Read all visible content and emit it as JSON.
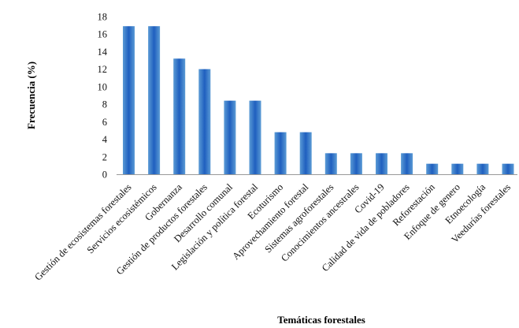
{
  "chart_data": {
    "type": "bar",
    "categories": [
      "Gestión de ecosistemas forestales",
      "Servicios ecosistémicos",
      "Gobernanza",
      "Gestión de productos forestales",
      "Desarrollo comunal",
      "Legislación y política forestal",
      "Ecoturismo",
      "Aprovechamiento forestal",
      "Sistemas agroforestales",
      "Conocimientos ancestrales",
      "Covid-19",
      "Calidad de vida de pobladores",
      "Reforestación",
      "Enfoque de genero",
      "Etnoecología",
      "Veedurías forestales"
    ],
    "values": [
      16.9,
      16.9,
      13.2,
      12.0,
      8.4,
      8.4,
      4.8,
      4.8,
      2.4,
      2.4,
      2.4,
      2.4,
      1.2,
      1.2,
      1.2,
      1.2
    ],
    "xlabel": "Temáticas forestales",
    "ylabel": "Frecuencia (%)",
    "ylim": [
      0,
      18
    ],
    "yticks": [
      0,
      2,
      4,
      6,
      8,
      10,
      12,
      14,
      16,
      18
    ],
    "grid": false,
    "legend": "none",
    "colors": {
      "bar_light": "#5b9bd5",
      "bar_dark": "#1f5fbf",
      "axis": "#999999"
    }
  }
}
